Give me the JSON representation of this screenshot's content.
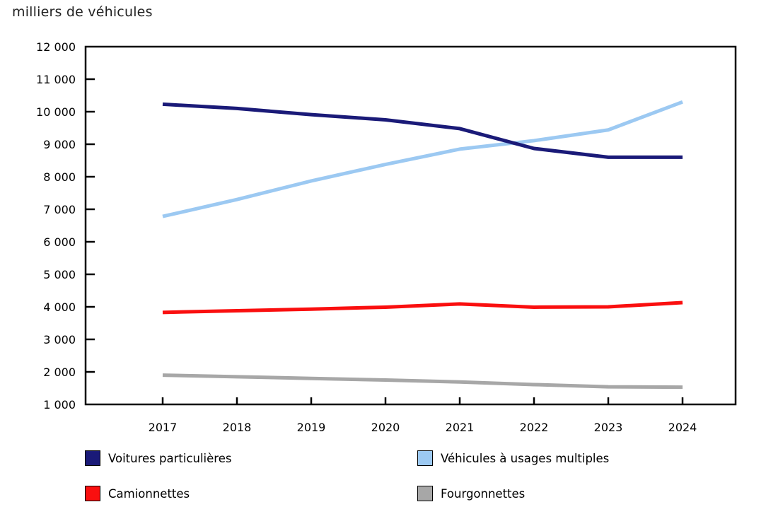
{
  "page": {
    "axis_unit_title": "milliers de véhicules"
  },
  "chart_data": {
    "type": "line",
    "title": "milliers de véhicules",
    "xlabel": "",
    "ylabel": "milliers de véhicules",
    "grid": false,
    "legend_position": "bottom",
    "ylim": [
      1000,
      12000
    ],
    "x": [
      2017,
      2018,
      2019,
      2020,
      2021,
      2022,
      2023,
      2024
    ],
    "x_tick_labels": [
      "2017",
      "2018",
      "2019",
      "2020",
      "2021",
      "2022",
      "2023",
      "2024"
    ],
    "y_ticks": [
      1000,
      2000,
      3000,
      4000,
      5000,
      6000,
      7000,
      8000,
      9000,
      10000,
      11000,
      12000
    ],
    "y_tick_labels": [
      "1 000",
      "2 000",
      "3 000",
      "4 000",
      "5 000",
      "6 000",
      "7 000",
      "8 000",
      "9 000",
      "10 000",
      "11 000",
      "12 000"
    ],
    "series": [
      {
        "name": "Voitures particulières",
        "color": "#1A1A78",
        "values": [
          10230,
          10100,
          9910,
          9750,
          9480,
          8870,
          8600,
          8600
        ]
      },
      {
        "name": "Véhicules à usages multiples",
        "color": "#9CC9F2",
        "values": [
          6780,
          7300,
          7870,
          8380,
          8850,
          9110,
          9440,
          10300
        ]
      },
      {
        "name": "Camionnettes",
        "color": "#FA0F0F",
        "values": [
          3830,
          3880,
          3930,
          3990,
          4090,
          3990,
          4000,
          4130
        ]
      },
      {
        "name": "Fourgonnettes",
        "color": "#A7A7A7",
        "values": [
          1900,
          1850,
          1800,
          1750,
          1690,
          1610,
          1540,
          1530
        ]
      }
    ],
    "axis_color": "#000000"
  }
}
